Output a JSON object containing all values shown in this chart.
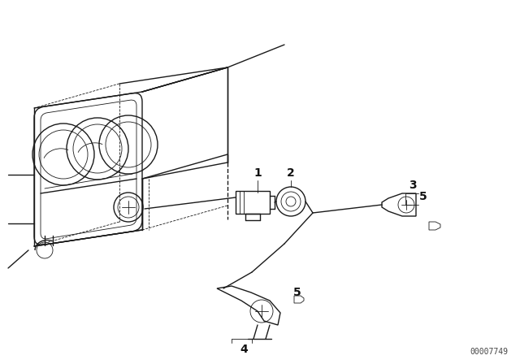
{
  "bg_color": "#ffffff",
  "line_color": "#1a1a1a",
  "label_color": "#111111",
  "diagram_id": "00007749",
  "fig_width": 6.4,
  "fig_height": 4.48,
  "dpi": 100
}
